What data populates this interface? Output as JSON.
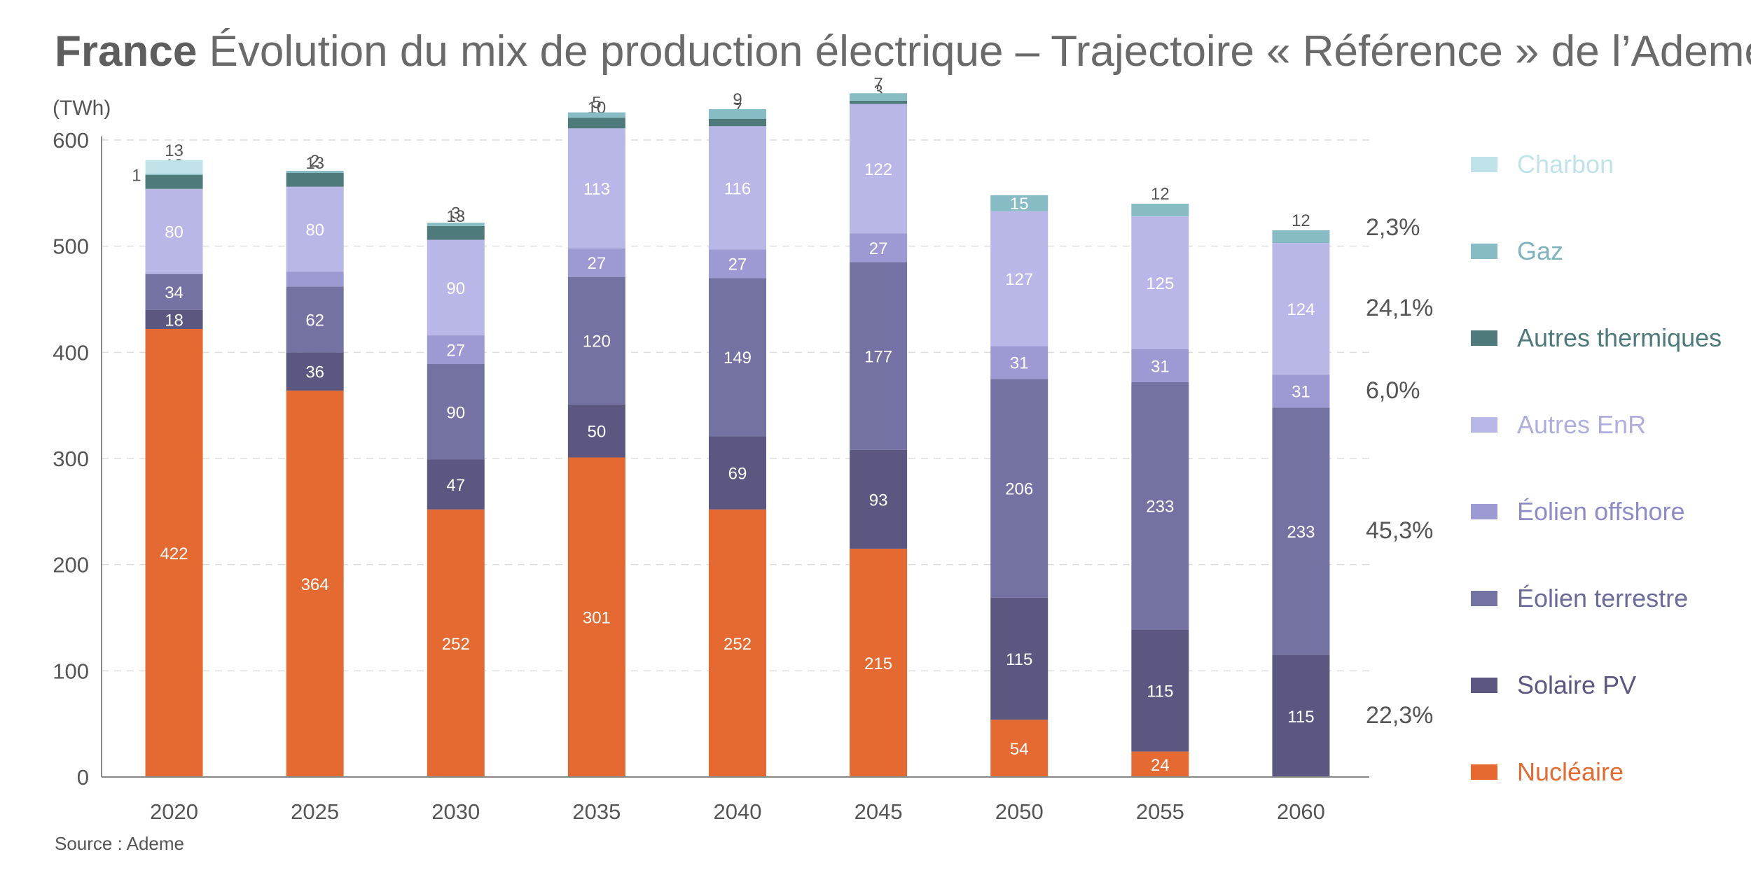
{
  "title_bold": "France",
  "title_rest": " Évolution du mix de production électrique – Trajectoire « Référence » de l’Ademe",
  "unit": "(TWh)",
  "source": "Source : Ademe",
  "chart_data": {
    "type": "bar",
    "stacked": true,
    "title": "France Évolution du mix de production électrique – Trajectoire « Référence » de l’Ademe",
    "ylabel": "(TWh)",
    "ylim": [
      0,
      600
    ],
    "yticks": [
      0,
      100,
      200,
      300,
      400,
      500,
      600
    ],
    "ytick_labels": [
      "0",
      "100",
      "200",
      "300",
      "400",
      "500",
      "600"
    ],
    "grid": true,
    "legend_position": "right",
    "categories": [
      "2020",
      "2025",
      "2030",
      "2035",
      "2040",
      "2045",
      "2050",
      "2055",
      "2060"
    ],
    "series": [
      {
        "name": "Nucléaire",
        "color": "#e46a32",
        "label_color": "#ffffff",
        "values": [
          422,
          364,
          252,
          301,
          252,
          215,
          54,
          24,
          0
        ],
        "labels": [
          "422",
          "364",
          "252",
          "301",
          "252",
          "215",
          "54",
          "24",
          ""
        ]
      },
      {
        "name": "Solaire PV",
        "color": "#5b5781",
        "label_color": "#ffffff",
        "values": [
          18,
          36,
          47,
          50,
          69,
          93,
          115,
          115,
          115
        ],
        "labels": [
          "18",
          "36",
          "47",
          "50",
          "69",
          "93",
          "115",
          "115",
          "115"
        ]
      },
      {
        "name": "Éolien terrestre",
        "color": "#7472a2",
        "label_color": "#ffffff",
        "values": [
          34,
          62,
          90,
          120,
          149,
          177,
          206,
          233,
          233
        ],
        "labels": [
          "34",
          "62",
          "90",
          "120",
          "149",
          "177",
          "206",
          "233",
          "233"
        ]
      },
      {
        "name": "Éolien offshore",
        "color": "#9d99d2",
        "label_color": "#ffffff",
        "values": [
          0,
          14,
          27,
          27,
          27,
          27,
          31,
          31,
          31
        ],
        "labels": [
          "",
          "14",
          "27",
          "27",
          "27",
          "27",
          "31",
          "31",
          "31"
        ]
      },
      {
        "name": "Autres EnR",
        "color": "#b9b6e8",
        "label_color": "#ffffff",
        "values": [
          80,
          80,
          90,
          113,
          116,
          122,
          127,
          125,
          124
        ],
        "labels": [
          "80",
          "80",
          "90",
          "113",
          "116",
          "122",
          "127",
          "125",
          "124"
        ]
      },
      {
        "name": "Autres thermiques",
        "color": "#4f7a7c",
        "label_color": "#ffffff",
        "values": [
          13,
          13,
          13,
          10,
          7,
          3,
          0,
          0,
          0
        ],
        "labels": [
          "13",
          "13",
          "13",
          "10",
          "7",
          "3",
          "",
          "",
          ""
        ]
      },
      {
        "name": "Gaz",
        "color": "#87bcc5",
        "label_color": "#ffffff",
        "values": [
          1,
          2,
          3,
          5,
          9,
          7,
          15,
          12,
          12
        ],
        "labels": [
          "1",
          "2",
          "3",
          "5",
          "9",
          "7",
          "15",
          "12",
          "12"
        ]
      },
      {
        "name": "Charbon",
        "color": "#bfe3e9",
        "label_color": "#555555",
        "values": [
          13,
          0,
          0,
          0,
          0,
          0,
          0,
          0,
          0
        ],
        "labels": [
          "13",
          "",
          "",
          "",
          "",
          "",
          "",
          "",
          ""
        ]
      }
    ],
    "share_2060": [
      {
        "series": "Gaz",
        "label": "2,3%"
      },
      {
        "series": "Autres EnR",
        "label": "24,1%"
      },
      {
        "series": "Éolien offshore",
        "label": "6,0%"
      },
      {
        "series": "Éolien terrestre",
        "label": "45,3%"
      },
      {
        "series": "Solaire PV",
        "label": "22,3%"
      }
    ]
  },
  "legend": [
    {
      "label": "Charbon",
      "color": "#bfe3e9",
      "text_color": "#bfe3e9"
    },
    {
      "label": "Gaz",
      "color": "#87bcc5",
      "text_color": "#7fb3bc"
    },
    {
      "label": "Autres thermiques",
      "color": "#4f7a7c",
      "text_color": "#4f7a7c"
    },
    {
      "label": "Autres EnR",
      "color": "#b9b6e8",
      "text_color": "#b0addf"
    },
    {
      "label": "Éolien offshore",
      "color": "#9d99d2",
      "text_color": "#8f8bc8"
    },
    {
      "label": "Éolien terrestre",
      "color": "#7472a2",
      "text_color": "#6c6a9a"
    },
    {
      "label": "Solaire PV",
      "color": "#5b5781",
      "text_color": "#5b5781"
    },
    {
      "label": "Nucléaire",
      "color": "#e46a32",
      "text_color": "#e46a32"
    }
  ]
}
